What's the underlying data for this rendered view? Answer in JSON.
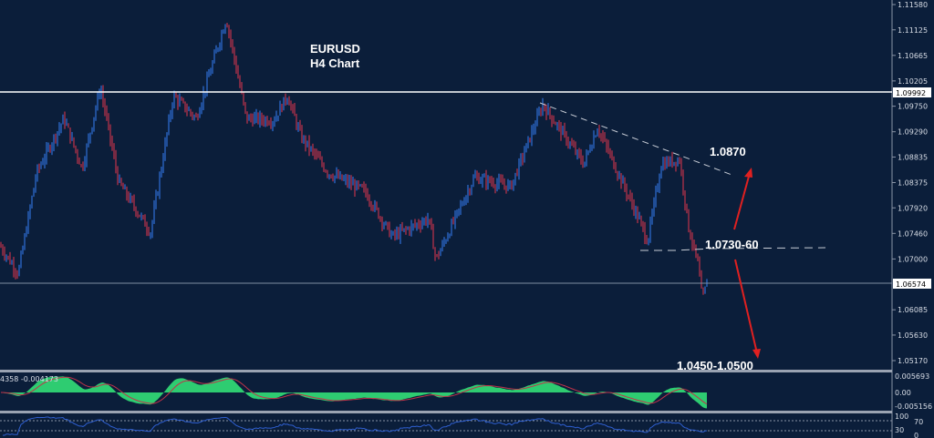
{
  "chart_data": {
    "type": "candlestick",
    "title": "EURUSD",
    "subtitle": "H4 Chart",
    "y_ticks": [
      "1.11580",
      "1.11125",
      "1.10665",
      "1.10205",
      "1.09750",
      "1.09290",
      "1.08835",
      "1.08375",
      "1.07920",
      "1.07460",
      "1.07000",
      "1.06085",
      "1.05630",
      "1.05170"
    ],
    "ylim": [
      1.0517,
      1.1158
    ],
    "price_path": [
      [
        0,
        1.0724
      ],
      [
        20,
        1.0674
      ],
      [
        40,
        1.0855
      ],
      [
        70,
        1.0953
      ],
      [
        90,
        1.0863
      ],
      [
        110,
        1.101
      ],
      [
        130,
        1.0838
      ],
      [
        165,
        1.0748
      ],
      [
        190,
        1.0994
      ],
      [
        215,
        1.0953
      ],
      [
        248,
        1.1133
      ],
      [
        270,
        1.0953
      ],
      [
        300,
        1.095
      ],
      [
        315,
        1.0994
      ],
      [
        330,
        1.092
      ],
      [
        360,
        1.0855
      ],
      [
        400,
        1.0822
      ],
      [
        430,
        1.074
      ],
      [
        470,
        1.0773
      ],
      [
        478,
        1.0699
      ],
      [
        520,
        1.0847
      ],
      [
        560,
        1.083
      ],
      [
        595,
        1.0978
      ],
      [
        640,
        1.0871
      ],
      [
        655,
        1.0937
      ],
      [
        700,
        1.0773
      ],
      [
        710,
        1.0732
      ],
      [
        725,
        1.0871
      ],
      [
        745,
        1.0879
      ],
      [
        755,
        1.0756
      ],
      [
        765,
        1.0691
      ],
      [
        770,
        1.0625
      ],
      [
        775,
        1.0658
      ]
    ],
    "horizontal_lines": {
      "resistance": "1.09992",
      "current": "1.06574"
    },
    "annotations": {
      "upper_target": "1.0870",
      "pivot": "1.0730-60",
      "lower_target": "1.0450-1.0500"
    },
    "up_color": "#2f6fd6",
    "down_color": "#c0334a",
    "macd": {
      "label": "4358 -0.004173",
      "ticks": [
        "0.005693",
        "0.00",
        "-0.005156"
      ],
      "color": "#2ecc71",
      "signal_color": "#c0334a"
    },
    "rsi": {
      "ticks": [
        "100",
        "70",
        "30",
        "0"
      ],
      "color": "#2f5fd0"
    }
  }
}
